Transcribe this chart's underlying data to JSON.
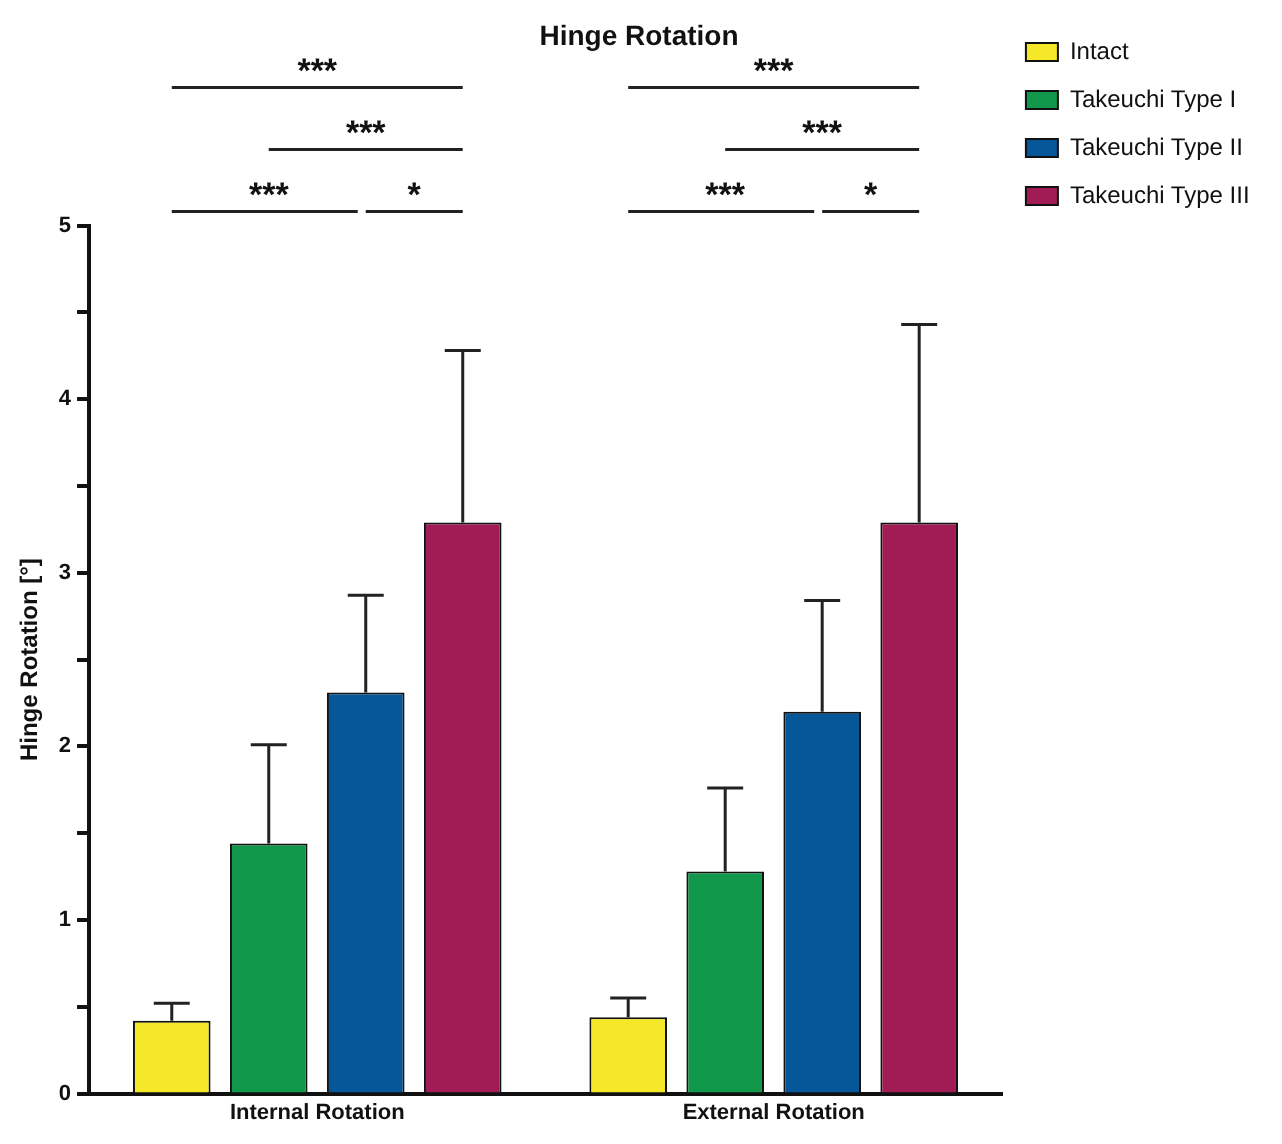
{
  "chart_data": {
    "type": "bar",
    "title": "Hinge Rotation",
    "ylabel": "Hinge Rotation [°]",
    "categories": [
      "Internal Rotation",
      "External Rotation"
    ],
    "series": [
      {
        "name": "Intact",
        "color": "#f5e829",
        "values": [
          0.42,
          0.44
        ],
        "errors": [
          [
            0.42,
            0.52
          ],
          [
            0.44,
            0.55
          ]
        ]
      },
      {
        "name": "Takeuchi Type I",
        "color": "#12984a",
        "values": [
          1.44,
          1.28
        ],
        "errors": [
          [
            1.44,
            2.01
          ],
          [
            1.28,
            1.76
          ]
        ]
      },
      {
        "name": "Takeuchi Type II",
        "color": "#06569a",
        "values": [
          2.31,
          2.2
        ],
        "errors": [
          [
            2.31,
            2.87
          ],
          [
            2.2,
            2.84
          ]
        ]
      },
      {
        "name": "Takeuchi Type III",
        "color": "#a11c54",
        "values": [
          3.29,
          3.29
        ],
        "errors": [
          [
            3.29,
            4.28
          ],
          [
            3.29,
            4.43
          ]
        ]
      }
    ],
    "ylim": [
      0,
      5
    ],
    "yticks": [
      0,
      {
        "value": 0.5,
        "label": null
      },
      1,
      {
        "value": 1.5,
        "label": null
      },
      2,
      {
        "value": 2.5,
        "label": null
      },
      3,
      {
        "value": 3.5,
        "label": null
      },
      4,
      {
        "value": 4.5,
        "label": null
      },
      5
    ],
    "annotations": [
      "***",
      "***",
      "***",
      "*",
      "***",
      "***",
      "***",
      "*"
    ],
    "grid": false,
    "legend": "top right"
  }
}
